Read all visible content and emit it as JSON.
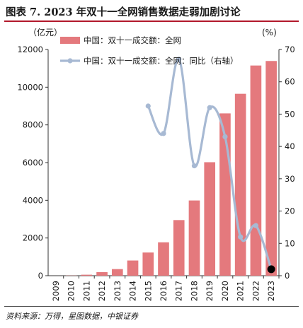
{
  "figure_title": "图表 7. 2023 年双十一全网销售数据走弱加剧讨论",
  "source_note": "资料来源：万得，星图数据，中银证券",
  "colors": {
    "bar": "#e4797d",
    "line": "#a7b9d3",
    "last_point": "#000000",
    "rule": "#b2182b"
  },
  "chart_data": {
    "type": "bar",
    "categories": [
      "2009",
      "2010",
      "2011",
      "2012",
      "2013",
      "2014",
      "2015",
      "2016",
      "2017",
      "2018",
      "2019",
      "2020",
      "2021",
      "2022",
      "2023"
    ],
    "left_unit": "（亿元）",
    "right_unit": "(%)",
    "left_ticks": [
      "0",
      "2000",
      "4000",
      "6000",
      "8000",
      "10000",
      "12000"
    ],
    "right_ticks": [
      "0",
      "10",
      "20",
      "30",
      "40",
      "50",
      "60",
      "70"
    ],
    "ylim": [
      0,
      12000
    ],
    "y2lim": [
      0,
      70
    ],
    "legend_position": "top-left",
    "grid": false,
    "series": [
      {
        "name": "中国：双十一成交额：全网",
        "type": "bar",
        "axis": "left",
        "values": [
          0.5,
          9,
          52,
          191,
          350,
          805,
          1229,
          1770,
          2950,
          3990,
          6020,
          8610,
          9650,
          11150,
          11390
        ]
      },
      {
        "name": "中国：双十一成交额：全网：同比（右轴）",
        "type": "line",
        "axis": "right",
        "x": [
          "2015",
          "2016",
          "2017",
          "2018",
          "2019",
          "2020",
          "2021",
          "2022",
          "2023"
        ],
        "values": [
          52.5,
          44,
          67,
          34,
          52,
          43,
          12,
          15.5,
          2
        ]
      }
    ]
  }
}
